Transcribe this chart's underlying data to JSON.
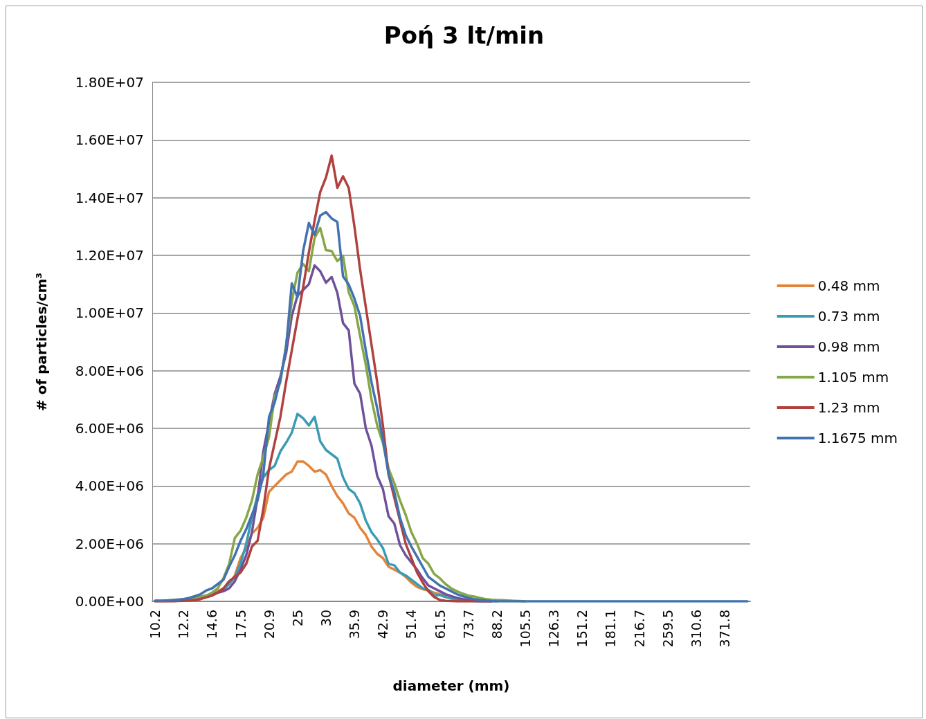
{
  "chart_data": {
    "type": "line",
    "title": "Ροή 3 lt/min",
    "xlabel": "diameter (mm)",
    "ylabel": "# of particles/cm³",
    "categories": [
      "10.2",
      null,
      null,
      null,
      null,
      "12.2",
      null,
      null,
      null,
      null,
      "14.6",
      null,
      null,
      null,
      null,
      "17.5",
      null,
      null,
      null,
      null,
      "20.9",
      null,
      null,
      null,
      null,
      "25",
      null,
      null,
      null,
      null,
      "30",
      null,
      null,
      null,
      null,
      "35.9",
      null,
      null,
      null,
      null,
      "42.9",
      null,
      null,
      null,
      null,
      "51.4",
      null,
      null,
      null,
      null,
      "61.5",
      null,
      null,
      null,
      null,
      "73.7",
      null,
      null,
      null,
      null,
      "88.2",
      null,
      null,
      null,
      null,
      "105.5",
      null,
      null,
      null,
      null,
      "126.3",
      null,
      null,
      null,
      null,
      "151.2",
      null,
      null,
      null,
      null,
      "181.1",
      null,
      null,
      null,
      null,
      "216.7",
      null,
      null,
      null,
      null,
      "259.5",
      null,
      null,
      null,
      null,
      "310.6",
      null,
      null,
      null,
      null,
      "371.8",
      null,
      null,
      null,
      null
    ],
    "series": [
      {
        "name": "0.48 mm",
        "color": "#e3843a",
        "values": [
          null,
          null,
          null,
          30000.0,
          30000.0,
          null,
          null,
          100000.0,
          120000.0,
          150000.0,
          200000.0,
          350000.0,
          450000.0,
          600000.0,
          900000.0,
          1500000.0,
          1850000.0,
          2350000.0,
          2550000.0,
          2900000.0,
          3800000.0,
          4000000.0,
          4200000.0,
          4400000.0,
          4500000.0,
          4850000.0,
          4850000.0,
          4700000.0,
          4500000.0,
          4550000.0,
          4400000.0,
          4000000.0,
          3650000.0,
          3400000.0,
          3050000.0,
          2900000.0,
          2550000.0,
          2300000.0,
          1900000.0,
          1650000.0,
          1500000.0,
          1200000.0,
          1100000.0,
          1000000.0,
          850000.0,
          650000.0,
          500000.0,
          420000.0,
          380000.0,
          300000.0,
          250000.0,
          180000.0,
          null,
          null,
          null,
          null,
          null,
          null,
          null,
          null,
          null,
          null,
          null,
          null,
          null,
          null,
          null,
          null,
          null,
          null,
          null,
          null,
          null,
          null,
          null,
          null,
          null,
          null,
          null,
          null,
          null,
          null,
          null,
          null,
          null,
          null,
          null,
          null,
          null,
          null,
          null,
          null,
          null,
          null,
          null,
          null,
          null,
          null,
          null,
          null,
          null,
          null,
          null,
          null,
          null
        ]
      },
      {
        "name": "0.73 mm",
        "color": "#3a9bb5",
        "values": [
          20000.0,
          20000.0,
          30000.0,
          30000.0,
          40000.0,
          60000.0,
          90000.0,
          120000.0,
          150000.0,
          200000.0,
          250000.0,
          300000.0,
          400000.0,
          600000.0,
          850000.0,
          1300000.0,
          2000000.0,
          2900000.0,
          3700000.0,
          4300000.0,
          4550000.0,
          4700000.0,
          5200000.0,
          5500000.0,
          5850000.0,
          6500000.0,
          6350000.0,
          6100000.0,
          6400000.0,
          5550000.0,
          5250000.0,
          5100000.0,
          4950000.0,
          4300000.0,
          3900000.0,
          3750000.0,
          3400000.0,
          2800000.0,
          2400000.0,
          2150000.0,
          1850000.0,
          1300000.0,
          1250000.0,
          1000000.0,
          900000.0,
          750000.0,
          600000.0,
          450000.0,
          400000.0,
          200000.0,
          220000.0,
          150000.0,
          100000.0,
          60000.0,
          40000.0,
          20000.0,
          10000.0,
          0,
          0,
          0,
          0,
          null,
          null,
          null,
          null,
          null,
          null,
          null,
          null,
          null,
          null,
          null,
          null,
          null,
          null,
          null,
          null,
          null,
          null,
          null,
          null,
          null,
          null,
          null,
          null,
          null,
          null,
          null,
          null,
          null,
          null,
          null,
          null,
          null,
          null,
          null,
          null,
          null,
          null,
          null,
          null,
          null,
          null,
          null,
          null
        ]
      },
      {
        "name": "0.98 mm",
        "color": "#6e5199",
        "values": [
          10000.0,
          10000.0,
          20000.0,
          20000.0,
          30000.0,
          50000.0,
          80000.0,
          100000.0,
          130000.0,
          180000.0,
          250000.0,
          300000.0,
          350000.0,
          450000.0,
          700000.0,
          1100000.0,
          1600000.0,
          2400000.0,
          3600000.0,
          5200000.0,
          6200000.0,
          7200000.0,
          7800000.0,
          8600000.0,
          9900000.0,
          10600000.0,
          10800000.0,
          11000000.0,
          11650000.0,
          11450000.0,
          11050000.0,
          11250000.0,
          10700000.0,
          9650000.0,
          9400000.0,
          7550000.0,
          7200000.0,
          6000000.0,
          5400000.0,
          4350000.0,
          3900000.0,
          2950000.0,
          2700000.0,
          1950000.0,
          1600000.0,
          1350000.0,
          1100000.0,
          800000.0,
          550000.0,
          450000.0,
          350000.0,
          250000.0,
          180000.0,
          120000.0,
          80000.0,
          50000.0,
          30000.0,
          20000.0,
          10000.0,
          0,
          null,
          null,
          null,
          null,
          null,
          null,
          null,
          null,
          null,
          null,
          null,
          null,
          null,
          null,
          null,
          null,
          null,
          null,
          null,
          null,
          null,
          null,
          null,
          null,
          null,
          null,
          null,
          null,
          null,
          null,
          null,
          null,
          null,
          null,
          null,
          null,
          null,
          null,
          null,
          null,
          null,
          null,
          null,
          null,
          null
        ]
      },
      {
        "name": "1.105 mm",
        "color": "#86a745",
        "values": [
          20000.0,
          20000.0,
          30000.0,
          40000.0,
          50000.0,
          70000.0,
          100000.0,
          130000.0,
          170000.0,
          200000.0,
          300000.0,
          450000.0,
          800000.0,
          1300000.0,
          2200000.0,
          2450000.0,
          2900000.0,
          3500000.0,
          4400000.0,
          5000000.0,
          5700000.0,
          7100000.0,
          7600000.0,
          8900000.0,
          10400000.0,
          11400000.0,
          11700000.0,
          11450000.0,
          12600000.0,
          12950000.0,
          12180000.0,
          12150000.0,
          11800000.0,
          11990000.0,
          10720000.0,
          10240000.0,
          9200000.0,
          8200000.0,
          7000000.0,
          6100000.0,
          5500000.0,
          4600000.0,
          4100000.0,
          3500000.0,
          3000000.0,
          2400000.0,
          2000000.0,
          1500000.0,
          1300000.0,
          950000.0,
          800000.0,
          600000.0,
          450000.0,
          350000.0,
          270000.0,
          200000.0,
          170000.0,
          120000.0,
          80000.0,
          60000.0,
          50000.0,
          40000.0,
          30000.0,
          20000.0,
          10000.0,
          0,
          null,
          null,
          null,
          null,
          null,
          null,
          null,
          null,
          null,
          null,
          null,
          null,
          null,
          null,
          null,
          null,
          null,
          null,
          null,
          null,
          null,
          null,
          null,
          null,
          null,
          null,
          null,
          null,
          null,
          null,
          null,
          null,
          null,
          null,
          null,
          null,
          null,
          null,
          null
        ]
      },
      {
        "name": "1.23 mm",
        "color": "#b0413e",
        "values": [
          0,
          0,
          0,
          0,
          10000.0,
          20000.0,
          30000.0,
          40000.0,
          80000.0,
          140000.0,
          200000.0,
          300000.0,
          450000.0,
          700000.0,
          850000.0,
          1000000.0,
          1300000.0,
          1900000.0,
          2100000.0,
          3200000.0,
          4600000.0,
          5500000.0,
          6400000.0,
          7600000.0,
          8700000.0,
          9800000.0,
          10900000.0,
          12100000.0,
          13200000.0,
          14200000.0,
          14700000.0,
          15460000.0,
          14340000.0,
          14740000.0,
          14340000.0,
          13000000.0,
          11500000.0,
          10200000.0,
          8900000.0,
          7600000.0,
          6100000.0,
          4400000.0,
          3600000.0,
          2800000.0,
          2000000.0,
          1500000.0,
          1000000.0,
          650000.0,
          350000.0,
          150000.0,
          50000.0,
          20000.0,
          10000.0,
          0,
          0,
          0,
          0,
          0,
          0,
          0,
          null,
          null,
          null,
          null,
          null,
          null,
          null,
          null,
          null,
          null,
          null,
          null,
          null,
          null,
          null,
          null,
          null,
          null,
          null,
          null,
          null,
          null,
          null,
          null,
          null,
          null,
          null,
          null,
          null,
          null,
          null,
          null,
          null,
          null,
          null,
          null,
          null,
          null,
          null,
          null,
          null,
          null,
          null,
          null,
          null
        ]
      },
      {
        "name": "1.1675 mm",
        "color": "#4272b0",
        "values": [
          20000.0,
          20000.0,
          30000.0,
          40000.0,
          60000.0,
          80000.0,
          120000.0,
          180000.0,
          250000.0,
          380000.0,
          450000.0,
          600000.0,
          750000.0,
          1200000.0,
          1600000.0,
          2100000.0,
          2500000.0,
          3000000.0,
          3500000.0,
          4400000.0,
          6400000.0,
          6900000.0,
          7700000.0,
          8800000.0,
          11030000.0,
          10550000.0,
          12160000.0,
          13120000.0,
          12710000.0,
          13380000.0,
          13500000.0,
          13280000.0,
          13160000.0,
          11270000.0,
          10990000.0,
          10500000.0,
          9900000.0,
          8700000.0,
          7600000.0,
          6700000.0,
          5600000.0,
          4400000.0,
          3800000.0,
          2900000.0,
          2300000.0,
          1900000.0,
          1550000.0,
          1200000.0,
          850000.0,
          700000.0,
          550000.0,
          450000.0,
          350000.0,
          250000.0,
          180000.0,
          120000.0,
          80000.0,
          50000.0,
          30000.0,
          10000.0,
          0,
          0,
          0,
          0,
          0,
          0,
          0,
          0,
          0,
          0,
          0,
          0,
          0,
          0,
          0,
          0,
          0,
          0,
          0,
          0,
          0,
          0,
          0,
          0,
          0,
          0,
          0,
          0,
          0,
          0,
          0,
          0,
          0,
          0,
          0,
          0,
          0,
          0,
          0,
          0,
          0,
          0,
          0,
          0,
          0
        ]
      }
    ],
    "ylim": [
      0,
      18000000
    ],
    "yticks": [
      {
        "value": 0,
        "label": "0.00E+00"
      },
      {
        "value": 2000000,
        "label": "2.00E+06"
      },
      {
        "value": 4000000,
        "label": "4.00E+06"
      },
      {
        "value": 6000000,
        "label": "6.00E+06"
      },
      {
        "value": 8000000,
        "label": "8.00E+06"
      },
      {
        "value": 10000000,
        "label": "1.00E+07"
      },
      {
        "value": 12000000,
        "label": "1.20E+07"
      },
      {
        "value": 14000000,
        "label": "1.40E+07"
      },
      {
        "value": 16000000,
        "label": "1.60E+07"
      },
      {
        "value": 18000000,
        "label": "1.80E+07"
      }
    ],
    "grid": "y",
    "legend": "right",
    "marker": "none",
    "line_style": "solid"
  }
}
